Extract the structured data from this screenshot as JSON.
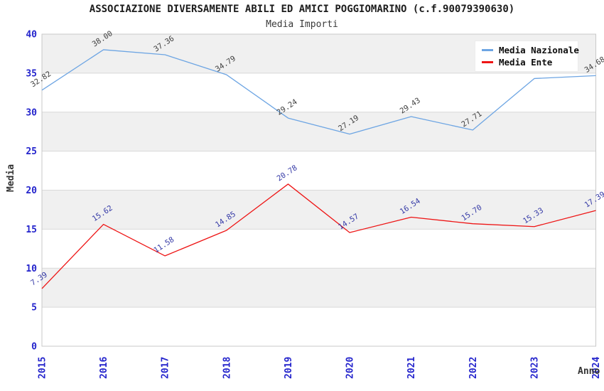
{
  "chart": {
    "title": "ASSOCIAZIONE DIVERSAMENTE ABILI ED AMICI POGGIOMARINO (c.f.90079390630)",
    "subtitle": "Media Importi",
    "xlabel": "Anno",
    "ylabel": "Media"
  },
  "legend": {
    "items": [
      {
        "label": "Media Nazionale",
        "color": "#6da5e3"
      },
      {
        "label": "Media Ente",
        "color": "#ee1515"
      }
    ]
  },
  "chart_data": {
    "type": "line",
    "title": "ASSOCIAZIONE DIVERSAMENTE ABILI ED AMICI POGGIOMARINO (c.f.90079390630)",
    "subtitle": "Media Importi",
    "xlabel": "Anno",
    "ylabel": "Media",
    "categories": [
      "2015",
      "2016",
      "2017",
      "2018",
      "2019",
      "2020",
      "2021",
      "2022",
      "2023",
      "2024"
    ],
    "ylim": [
      0,
      40
    ],
    "ytick_step": 5,
    "yticks": [
      0,
      5,
      10,
      15,
      20,
      25,
      30,
      35,
      40
    ],
    "grid": true,
    "band_fill": "#f0f0f0",
    "grid_color": "#d9d9d9",
    "border_color": "#c9c9c9",
    "axis_text_color": "#2424cc",
    "legend_position": "top-right",
    "series": [
      {
        "name": "Media Nazionale",
        "color": "#6da5e3",
        "label_color": "#3f3f3f",
        "values": [
          32.82,
          38.0,
          37.36,
          34.79,
          29.24,
          27.19,
          29.43,
          27.71,
          34.31,
          34.68
        ],
        "point_labels": [
          "32.82",
          "38.00",
          "37.36",
          "34.79",
          "29.24",
          "27.19",
          "29.43",
          "27.71",
          "",
          "34.68"
        ]
      },
      {
        "name": "Media Ente",
        "color": "#ee1515",
        "label_color": "#3439a6",
        "values": [
          7.39,
          15.62,
          11.58,
          14.85,
          20.78,
          14.57,
          16.54,
          15.7,
          15.33,
          17.39
        ],
        "point_labels": [
          "7.39",
          "15.62",
          "11.58",
          "14.85",
          "20.78",
          "14.57",
          "16.54",
          "15.70",
          "15.33",
          "17.39"
        ]
      }
    ]
  }
}
